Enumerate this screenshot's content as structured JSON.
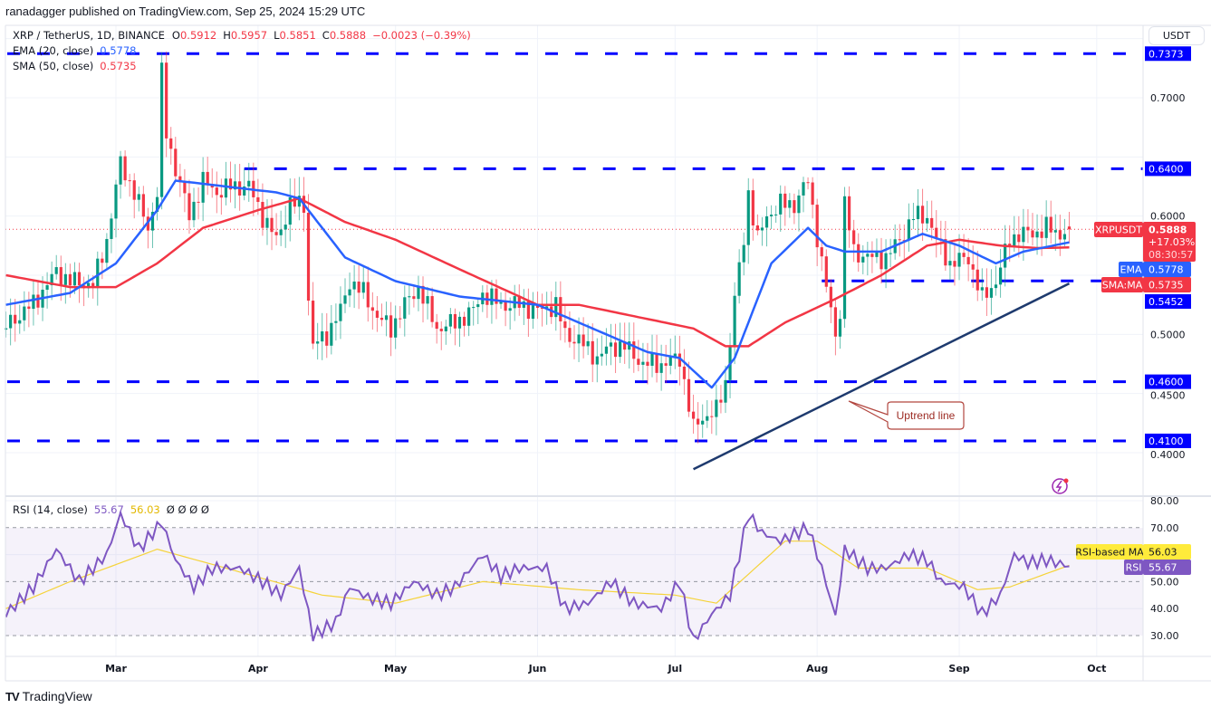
{
  "header": {
    "published": "ranadagger published on TradingView.com, Sep 25, 2024 15:29 UTC"
  },
  "legend": {
    "symbol": "XRP / TetherUS, 1D, BINANCE",
    "o_label": "O",
    "o": "0.5912",
    "h_label": "H",
    "h": "0.5957",
    "l_label": "L",
    "l": "0.5851",
    "c_label": "C",
    "c": "0.5888",
    "change": "−0.0023 (−0.39%)",
    "ema_label": "EMA (20, close)",
    "ema_value": "0.5778",
    "sma_label": "SMA (50, close)",
    "sma_value": "0.5735"
  },
  "price_axis": {
    "unit_button": "USDT",
    "ticks": [
      "0.7000",
      "0.6000",
      "0.5000",
      "0.4500",
      "0.4000"
    ],
    "symbol_tag": "XRPUSDT",
    "last_price": "0.5888",
    "change_pct": "+17.03%",
    "countdown": "08:30:57",
    "ema_tag": "EMA",
    "ema_price": "0.5778",
    "sma_tag": "SMA:MA",
    "sma_price": "0.5735"
  },
  "rsi": {
    "label": "RSI (14, close)",
    "value": "55.67",
    "ma_value": "56.03",
    "extras": "Ø  Ø  Ø  Ø",
    "ticks": [
      "80.00",
      "70.00",
      "50.00",
      "40.00",
      "30.00"
    ],
    "ma_tag": "RSI-based MA",
    "rsi_tag": "RSI"
  },
  "time_axis": {
    "labels": [
      "Mar",
      "Apr",
      "May",
      "Jun",
      "Jul",
      "Aug",
      "Sep",
      "Oct"
    ]
  },
  "annotation": {
    "text": "Uptrend line"
  },
  "footer": {
    "logo_text": "TradingView"
  },
  "colors": {
    "up": "#089981",
    "down": "#F23645",
    "ema": "#2962FF",
    "sma": "#F23645",
    "levels": "#0000FF",
    "trendline": "#1E3A6E",
    "rsi": "#7E57C2",
    "rsi_ma": "#F5D33A"
  },
  "chart_data": {
    "type": "candlestick",
    "symbol": "XRPUSDT",
    "interval": "1D",
    "ylim": [
      0.37,
      0.75
    ],
    "rsi_ylim": [
      25,
      82
    ],
    "grid": true,
    "horizontal_levels": [
      {
        "price": 0.7373,
        "label": "0.7373",
        "from": "2024-02-06"
      },
      {
        "price": 0.64,
        "label": "0.6400",
        "from": "2024-03-29"
      },
      {
        "price": 0.5452,
        "label": "0.5452",
        "from": "2024-08-02"
      },
      {
        "price": 0.46,
        "label": "0.4600",
        "from": "2024-02-06"
      },
      {
        "price": 0.41,
        "label": "0.4100",
        "from": "2024-02-06"
      }
    ],
    "trendline": {
      "start": [
        "2024-07-05",
        0.386
      ],
      "end": [
        "2024-09-25",
        0.543
      ]
    },
    "close_keypoints": [
      [
        "2024-02-06",
        0.507
      ],
      [
        "2024-02-12",
        0.526
      ],
      [
        "2024-02-17",
        0.553
      ],
      [
        "2024-02-20",
        0.545
      ],
      [
        "2024-02-25",
        0.542
      ],
      [
        "2024-02-28",
        0.58
      ],
      [
        "2024-03-02",
        0.645
      ],
      [
        "2024-03-05",
        0.62
      ],
      [
        "2024-03-08",
        0.59
      ],
      [
        "2024-03-10",
        0.62
      ],
      [
        "2024-03-11",
        0.72
      ],
      [
        "2024-03-12",
        0.67
      ],
      [
        "2024-03-14",
        0.64
      ],
      [
        "2024-03-17",
        0.6
      ],
      [
        "2024-03-20",
        0.63
      ],
      [
        "2024-03-23",
        0.62
      ],
      [
        "2024-03-26",
        0.625
      ],
      [
        "2024-03-30",
        0.625
      ],
      [
        "2024-04-02",
        0.6
      ],
      [
        "2024-04-05",
        0.58
      ],
      [
        "2024-04-08",
        0.61
      ],
      [
        "2024-04-11",
        0.61
      ],
      [
        "2024-04-12",
        0.53
      ],
      [
        "2024-04-13",
        0.49
      ],
      [
        "2024-04-16",
        0.5
      ],
      [
        "2024-04-19",
        0.52
      ],
      [
        "2024-04-21",
        0.545
      ],
      [
        "2024-04-24",
        0.535
      ],
      [
        "2024-04-27",
        0.515
      ],
      [
        "2024-04-30",
        0.505
      ],
      [
        "2024-05-03",
        0.525
      ],
      [
        "2024-05-06",
        0.54
      ],
      [
        "2024-05-10",
        0.505
      ],
      [
        "2024-05-14",
        0.51
      ],
      [
        "2024-05-18",
        0.52
      ],
      [
        "2024-05-20",
        0.535
      ],
      [
        "2024-05-24",
        0.525
      ],
      [
        "2024-05-28",
        0.525
      ],
      [
        "2024-06-01",
        0.52
      ],
      [
        "2024-06-05",
        0.525
      ],
      [
        "2024-06-07",
        0.5
      ],
      [
        "2024-06-10",
        0.495
      ],
      [
        "2024-06-14",
        0.48
      ],
      [
        "2024-06-17",
        0.49
      ],
      [
        "2024-06-20",
        0.49
      ],
      [
        "2024-06-24",
        0.475
      ],
      [
        "2024-06-28",
        0.475
      ],
      [
        "2024-07-02",
        0.48
      ],
      [
        "2024-07-04",
        0.44
      ],
      [
        "2024-07-05",
        0.42
      ],
      [
        "2024-07-07",
        0.43
      ],
      [
        "2024-07-10",
        0.435
      ],
      [
        "2024-07-12",
        0.46
      ],
      [
        "2024-07-14",
        0.53
      ],
      [
        "2024-07-16",
        0.58
      ],
      [
        "2024-07-17",
        0.62
      ],
      [
        "2024-07-19",
        0.58
      ],
      [
        "2024-07-21",
        0.6
      ],
      [
        "2024-07-24",
        0.61
      ],
      [
        "2024-07-27",
        0.61
      ],
      [
        "2024-07-30",
        0.63
      ],
      [
        "2024-08-02",
        0.56
      ],
      [
        "2024-08-05",
        0.5
      ],
      [
        "2024-08-06",
        0.52
      ],
      [
        "2024-08-07",
        0.61
      ],
      [
        "2024-08-09",
        0.57
      ],
      [
        "2024-08-12",
        0.565
      ],
      [
        "2024-08-16",
        0.565
      ],
      [
        "2024-08-19",
        0.58
      ],
      [
        "2024-08-22",
        0.6
      ],
      [
        "2024-08-25",
        0.6
      ],
      [
        "2024-08-27",
        0.58
      ],
      [
        "2024-08-30",
        0.56
      ],
      [
        "2024-09-03",
        0.565
      ],
      [
        "2024-09-06",
        0.53
      ],
      [
        "2024-09-09",
        0.545
      ],
      [
        "2024-09-12",
        0.58
      ],
      [
        "2024-09-14",
        0.585
      ],
      [
        "2024-09-17",
        0.585
      ],
      [
        "2024-09-20",
        0.59
      ],
      [
        "2024-09-23",
        0.585
      ],
      [
        "2024-09-25",
        0.5888
      ]
    ],
    "ema20_keypoints": [
      [
        "2024-02-06",
        0.525
      ],
      [
        "2024-02-20",
        0.535
      ],
      [
        "2024-03-01",
        0.56
      ],
      [
        "2024-03-10",
        0.605
      ],
      [
        "2024-03-14",
        0.63
      ],
      [
        "2024-03-25",
        0.625
      ],
      [
        "2024-04-05",
        0.62
      ],
      [
        "2024-04-10",
        0.615
      ],
      [
        "2024-04-20",
        0.565
      ],
      [
        "2024-05-01",
        0.545
      ],
      [
        "2024-05-15",
        0.532
      ],
      [
        "2024-06-01",
        0.525
      ],
      [
        "2024-06-10",
        0.51
      ],
      [
        "2024-06-25",
        0.485
      ],
      [
        "2024-07-02",
        0.48
      ],
      [
        "2024-07-09",
        0.455
      ],
      [
        "2024-07-14",
        0.48
      ],
      [
        "2024-07-22",
        0.56
      ],
      [
        "2024-07-30",
        0.59
      ],
      [
        "2024-08-03",
        0.575
      ],
      [
        "2024-08-07",
        0.57
      ],
      [
        "2024-08-15",
        0.57
      ],
      [
        "2024-08-24",
        0.585
      ],
      [
        "2024-09-01",
        0.575
      ],
      [
        "2024-09-09",
        0.56
      ],
      [
        "2024-09-15",
        0.57
      ],
      [
        "2024-09-25",
        0.5778
      ]
    ],
    "sma50_keypoints": [
      [
        "2024-02-06",
        0.55
      ],
      [
        "2024-02-20",
        0.54
      ],
      [
        "2024-03-01",
        0.54
      ],
      [
        "2024-03-10",
        0.56
      ],
      [
        "2024-03-20",
        0.59
      ],
      [
        "2024-04-01",
        0.605
      ],
      [
        "2024-04-10",
        0.615
      ],
      [
        "2024-04-20",
        0.595
      ],
      [
        "2024-05-01",
        0.58
      ],
      [
        "2024-05-15",
        0.555
      ],
      [
        "2024-06-01",
        0.525
      ],
      [
        "2024-06-10",
        0.525
      ],
      [
        "2024-06-25",
        0.513
      ],
      [
        "2024-07-05",
        0.505
      ],
      [
        "2024-07-12",
        0.49
      ],
      [
        "2024-07-17",
        0.49
      ],
      [
        "2024-07-25",
        0.51
      ],
      [
        "2024-08-05",
        0.53
      ],
      [
        "2024-08-15",
        0.55
      ],
      [
        "2024-08-25",
        0.575
      ],
      [
        "2024-09-01",
        0.58
      ],
      [
        "2024-09-10",
        0.575
      ],
      [
        "2024-09-18",
        0.573
      ],
      [
        "2024-09-25",
        0.5735
      ]
    ],
    "rsi_keypoints": [
      [
        "2024-02-06",
        38
      ],
      [
        "2024-02-12",
        48
      ],
      [
        "2024-02-17",
        62
      ],
      [
        "2024-02-22",
        50
      ],
      [
        "2024-02-28",
        60
      ],
      [
        "2024-03-02",
        75
      ],
      [
        "2024-03-06",
        62
      ],
      [
        "2024-03-11",
        72
      ],
      [
        "2024-03-14",
        58
      ],
      [
        "2024-03-18",
        48
      ],
      [
        "2024-03-22",
        55
      ],
      [
        "2024-03-28",
        55
      ],
      [
        "2024-04-02",
        50
      ],
      [
        "2024-04-06",
        45
      ],
      [
        "2024-04-10",
        55
      ],
      [
        "2024-04-13",
        30
      ],
      [
        "2024-04-18",
        35
      ],
      [
        "2024-04-21",
        48
      ],
      [
        "2024-04-25",
        44
      ],
      [
        "2024-04-30",
        42
      ],
      [
        "2024-05-05",
        50
      ],
      [
        "2024-05-10",
        45
      ],
      [
        "2024-05-14",
        48
      ],
      [
        "2024-05-20",
        60
      ],
      [
        "2024-05-24",
        52
      ],
      [
        "2024-05-28",
        55
      ],
      [
        "2024-06-03",
        55
      ],
      [
        "2024-06-07",
        40
      ],
      [
        "2024-06-12",
        42
      ],
      [
        "2024-06-17",
        50
      ],
      [
        "2024-06-22",
        42
      ],
      [
        "2024-06-28",
        40
      ],
      [
        "2024-07-02",
        50
      ],
      [
        "2024-07-05",
        28
      ],
      [
        "2024-07-09",
        38
      ],
      [
        "2024-07-13",
        45
      ],
      [
        "2024-07-17",
        75
      ],
      [
        "2024-07-20",
        68
      ],
      [
        "2024-07-24",
        65
      ],
      [
        "2024-07-30",
        70
      ],
      [
        "2024-08-02",
        55
      ],
      [
        "2024-08-05",
        37
      ],
      [
        "2024-08-07",
        62
      ],
      [
        "2024-08-12",
        55
      ],
      [
        "2024-08-16",
        55
      ],
      [
        "2024-08-21",
        60
      ],
      [
        "2024-08-25",
        58
      ],
      [
        "2024-08-28",
        50
      ],
      [
        "2024-09-02",
        48
      ],
      [
        "2024-09-06",
        38
      ],
      [
        "2024-09-10",
        45
      ],
      [
        "2024-09-13",
        60
      ],
      [
        "2024-09-16",
        57
      ],
      [
        "2024-09-20",
        58
      ],
      [
        "2024-09-25",
        55.67
      ]
    ],
    "rsi_ma_keypoints": [
      [
        "2024-02-06",
        40
      ],
      [
        "2024-02-20",
        50
      ],
      [
        "2024-03-10",
        62
      ],
      [
        "2024-03-25",
        55
      ],
      [
        "2024-04-15",
        45
      ],
      [
        "2024-05-01",
        42
      ],
      [
        "2024-05-20",
        50
      ],
      [
        "2024-06-10",
        47
      ],
      [
        "2024-07-01",
        45
      ],
      [
        "2024-07-10",
        42
      ],
      [
        "2024-07-25",
        65
      ],
      [
        "2024-08-01",
        65
      ],
      [
        "2024-08-10",
        55
      ],
      [
        "2024-08-25",
        55
      ],
      [
        "2024-09-05",
        47
      ],
      [
        "2024-09-12",
        48
      ],
      [
        "2024-09-25",
        56.03
      ]
    ],
    "rsi_levels": [
      70,
      50,
      30
    ]
  }
}
